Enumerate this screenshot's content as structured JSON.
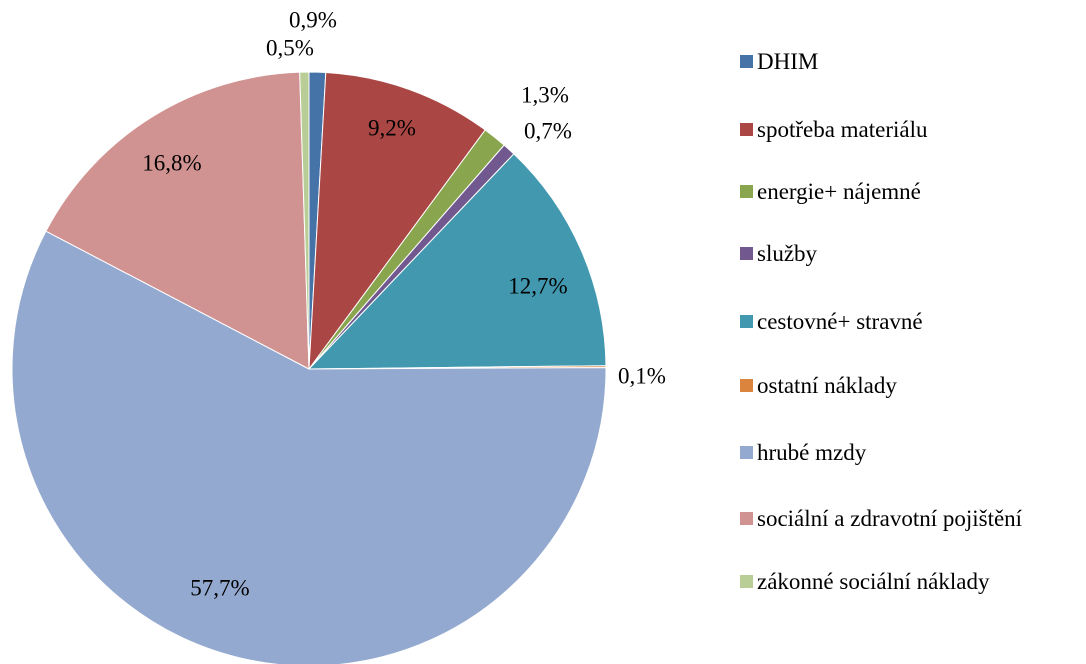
{
  "chart_data": {
    "type": "pie",
    "categories": [
      "DHIM",
      "spotřeba materiálu",
      "energie+ nájemné",
      "služby",
      "cestovné+ stravné",
      "ostatní náklady",
      "hrubé mzdy",
      "sociální a zdravotní pojištění",
      "zákonné sociální náklady"
    ],
    "values": [
      0.9,
      9.2,
      1.3,
      0.7,
      12.7,
      0.1,
      57.7,
      16.8,
      0.5
    ],
    "value_labels": [
      "0,9%",
      "9,2%",
      "1,3%",
      "0,7%",
      "12,7%",
      "0,1%",
      "57,7%",
      "16,8%",
      "0,5%"
    ],
    "colors": [
      "#4572a7",
      "#aa4643",
      "#89a54e",
      "#71588f",
      "#4198af",
      "#db843d",
      "#93a9cf",
      "#d19392",
      "#b9cd96"
    ],
    "legend": "right"
  }
}
